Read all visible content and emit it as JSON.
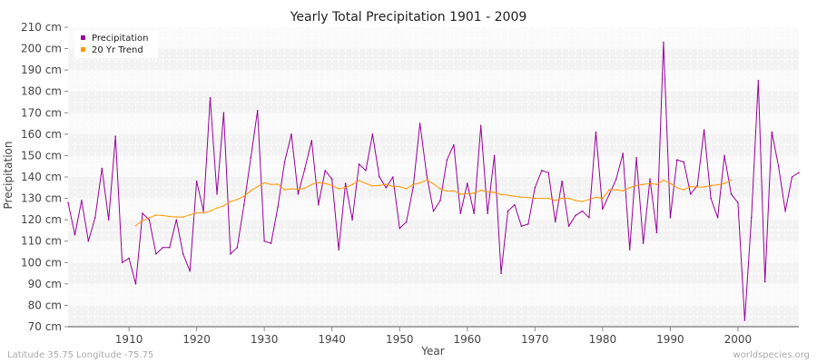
{
  "chart_data": {
    "type": "line",
    "title": "Yearly Total Precipitation 1901 - 2009",
    "xlabel": "Year",
    "ylabel": "Precipitation",
    "xlim": [
      1901,
      2009
    ],
    "ylim": [
      70,
      210
    ],
    "x_ticks": [
      1910,
      1920,
      1930,
      1940,
      1950,
      1960,
      1970,
      1980,
      1990,
      2000
    ],
    "y_ticks": [
      70,
      80,
      90,
      100,
      110,
      120,
      130,
      140,
      150,
      160,
      170,
      180,
      190,
      200,
      210
    ],
    "y_tick_suffix": " cm",
    "grid": true,
    "legend_position": "top-left",
    "series": [
      {
        "name": "Precipitation",
        "color": "#990099",
        "x": [
          1901,
          1902,
          1903,
          1904,
          1905,
          1906,
          1907,
          1908,
          1909,
          1910,
          1911,
          1912,
          1913,
          1914,
          1915,
          1916,
          1917,
          1918,
          1919,
          1920,
          1921,
          1922,
          1923,
          1924,
          1925,
          1926,
          1927,
          1928,
          1929,
          1930,
          1931,
          1932,
          1933,
          1934,
          1935,
          1936,
          1937,
          1938,
          1939,
          1940,
          1941,
          1942,
          1943,
          1944,
          1945,
          1946,
          1947,
          1948,
          1949,
          1950,
          1951,
          1952,
          1953,
          1954,
          1955,
          1956,
          1957,
          1958,
          1959,
          1960,
          1961,
          1962,
          1963,
          1964,
          1965,
          1966,
          1967,
          1968,
          1969,
          1970,
          1971,
          1972,
          1973,
          1974,
          1975,
          1976,
          1977,
          1978,
          1979,
          1980,
          1981,
          1982,
          1983,
          1984,
          1985,
          1986,
          1987,
          1988,
          1989,
          1990,
          1991,
          1992,
          1993,
          1994,
          1995,
          1996,
          1997,
          1998,
          1999,
          2000,
          2001,
          2002,
          2003,
          2004,
          2005,
          2006,
          2007,
          2008,
          2009
        ],
        "values": [
          128,
          113,
          129,
          110,
          121,
          144,
          120,
          159,
          100,
          102,
          90,
          123,
          120,
          104,
          107,
          107,
          120,
          104,
          96,
          138,
          124,
          177,
          132,
          170,
          104,
          107,
          127,
          149,
          171,
          110,
          109,
          126,
          147,
          160,
          132,
          144,
          157,
          127,
          143,
          139,
          106,
          137,
          120,
          146,
          143,
          160,
          140,
          135,
          140,
          116,
          119,
          135,
          165,
          141,
          124,
          129,
          148,
          155,
          123,
          137,
          123,
          164,
          123,
          150,
          95,
          124,
          127,
          117,
          118,
          135,
          143,
          142,
          119,
          138,
          117,
          122,
          124,
          121,
          161,
          125,
          132,
          139,
          151,
          106,
          149,
          109,
          139,
          114,
          203,
          121,
          148,
          147,
          132,
          136,
          162,
          130,
          121,
          150,
          132,
          128,
          73,
          121,
          185,
          91,
          161,
          145,
          124,
          140,
          142
        ]
      },
      {
        "name": "20 Yr Trend",
        "color": "#ff9900",
        "x": [
          1911,
          1912,
          1913,
          1914,
          1915,
          1916,
          1917,
          1918,
          1919,
          1920,
          1921,
          1922,
          1923,
          1924,
          1925,
          1926,
          1927,
          1928,
          1929,
          1930,
          1931,
          1932,
          1933,
          1934,
          1935,
          1936,
          1937,
          1938,
          1939,
          1940,
          1941,
          1942,
          1943,
          1944,
          1945,
          1946,
          1947,
          1948,
          1949,
          1950,
          1951,
          1952,
          1953,
          1954,
          1955,
          1956,
          1957,
          1958,
          1959,
          1960,
          1961,
          1962,
          1963,
          1964,
          1965,
          1966,
          1967,
          1968,
          1969,
          1970,
          1971,
          1972,
          1973,
          1974,
          1975,
          1976,
          1977,
          1978,
          1979,
          1980,
          1981,
          1982,
          1983,
          1984,
          1985,
          1986,
          1987,
          1988,
          1989,
          1990,
          1991,
          1992,
          1993,
          1994,
          1995,
          1996,
          1997,
          1998,
          1999
        ],
        "values": [
          117.3,
          119.5,
          121,
          122.2,
          122,
          121.5,
          121.3,
          121.3,
          122.3,
          123.2,
          123.2,
          124,
          125.5,
          126.5,
          128.5,
          129.5,
          131,
          133.5,
          135.5,
          137.3,
          136.5,
          136.6,
          134,
          134.5,
          134.2,
          134.8,
          136.5,
          137.4,
          137,
          136,
          134.5,
          135,
          136.5,
          138.3,
          137,
          135.8,
          136,
          136.6,
          135.5,
          135.5,
          134.5,
          136.5,
          137.2,
          138.5,
          136.8,
          134.5,
          133.4,
          133.5,
          132,
          132.2,
          132.5,
          133.8,
          133,
          132.8,
          131.8,
          131.5,
          131,
          130.6,
          130.4,
          130,
          130,
          130,
          129,
          130,
          130,
          129,
          128.5,
          129.5,
          130.5,
          130,
          134,
          134,
          133.5,
          135,
          136,
          136.5,
          137,
          136.5,
          138.5,
          137,
          135,
          134,
          135.5,
          135.3,
          135.3,
          136,
          136.3,
          137,
          138.5
        ]
      }
    ]
  },
  "footer": {
    "left": "Latitude 35.75 Longitude -75.75",
    "right": "worldspecies.org"
  }
}
